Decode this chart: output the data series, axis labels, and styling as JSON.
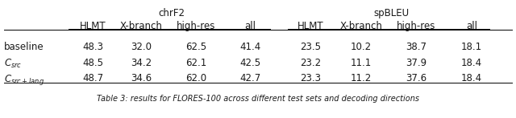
{
  "title_chrf2": "chrF2",
  "title_spbleu": "spBLEU",
  "col_headers": [
    "HLMT",
    "X-branch",
    "high-res",
    "all",
    "HLMT",
    "X-branch",
    "high-res",
    "all"
  ],
  "row_labels": [
    "baseline",
    "$C_{src}$",
    "$C_{src+lang}$"
  ],
  "data": [
    [
      "48.3",
      "32.0",
      "62.5",
      "41.4",
      "23.5",
      "10.2",
      "38.7",
      "18.1"
    ],
    [
      "48.5",
      "34.2",
      "62.1",
      "42.5",
      "23.2",
      "11.1",
      "37.9",
      "18.4"
    ],
    [
      "48.7",
      "34.6",
      "62.0",
      "42.7",
      "23.3",
      "11.2",
      "37.6",
      "18.4"
    ]
  ],
  "caption": "Table 3: results for FLORES-100 across different test sets and decoding directions",
  "bg_color": "#ffffff",
  "text_color": "#1a1a1a",
  "font_size": 8.5,
  "caption_font_size": 7.0
}
